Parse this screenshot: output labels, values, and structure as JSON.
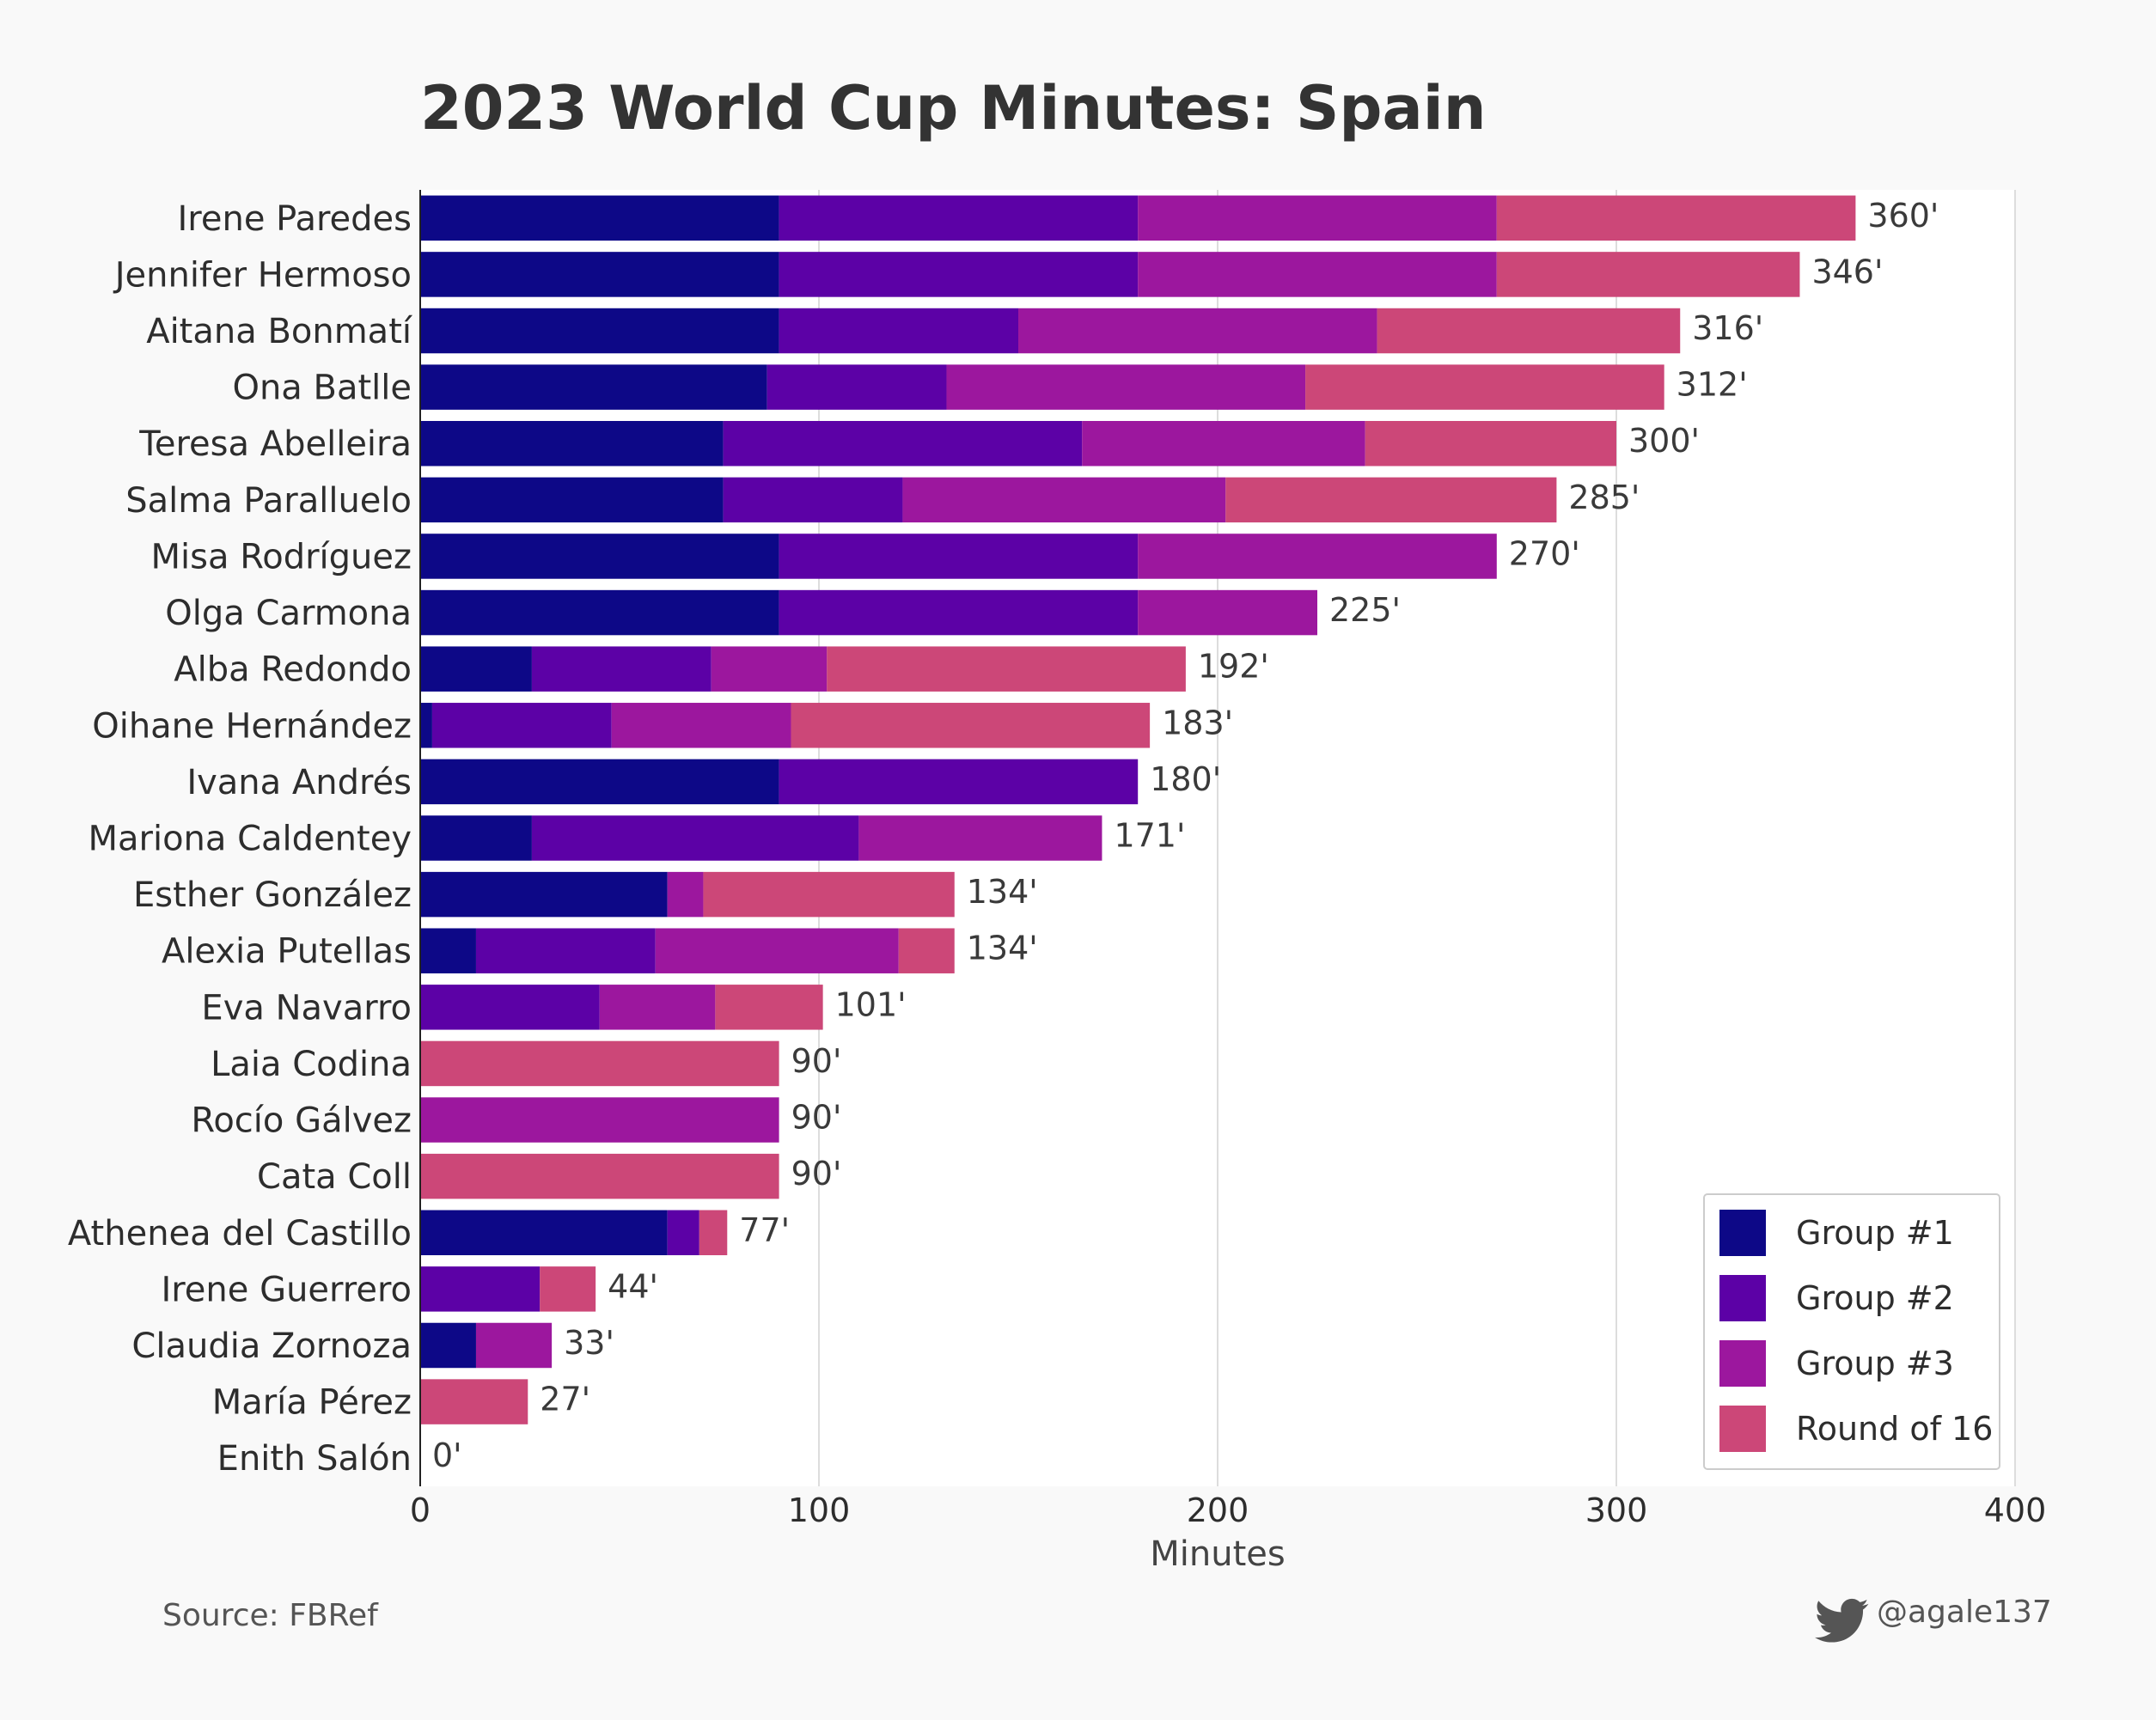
{
  "chart_data": {
    "type": "bar",
    "orientation": "horizontal",
    "stacked": true,
    "title": "2023 World Cup Minutes: Spain",
    "xlabel": "Minutes",
    "xlim": [
      0,
      400
    ],
    "xticks": [
      0,
      100,
      200,
      300,
      400
    ],
    "value_suffix": "'",
    "grid": "vertical",
    "legend_position": "bottom-right",
    "categories": [
      "Irene Paredes",
      "Jennifer Hermoso",
      "Aitana Bonmatí",
      "Ona Batlle",
      "Teresa Abelleira",
      "Salma Paralluelo",
      "Misa Rodríguez",
      "Olga Carmona",
      "Alba Redondo",
      "Oihane Hernández",
      "Ivana Andrés",
      "Mariona Caldentey",
      "Esther González",
      "Alexia Putellas",
      "Eva Navarro",
      "Laia Codina",
      "Rocío Gálvez",
      "Cata Coll",
      "Athenea del Castillo",
      "Irene Guerrero",
      "Claudia Zornoza",
      "María Pérez",
      "Enith Salón"
    ],
    "totals": [
      360,
      346,
      316,
      312,
      300,
      285,
      270,
      225,
      192,
      183,
      180,
      171,
      134,
      134,
      101,
      90,
      90,
      90,
      77,
      44,
      33,
      27,
      0
    ],
    "series": [
      {
        "name": "Group #1",
        "color": "#0d0887",
        "values": [
          90,
          90,
          90,
          87,
          76,
          76,
          90,
          90,
          28,
          3,
          90,
          28,
          62,
          14,
          0,
          0,
          0,
          0,
          62,
          0,
          14,
          0,
          0
        ]
      },
      {
        "name": "Group #2",
        "color": "#5c01a6",
        "values": [
          90,
          90,
          60,
          45,
          90,
          45,
          90,
          90,
          45,
          45,
          90,
          82,
          0,
          45,
          45,
          0,
          0,
          0,
          8,
          30,
          0,
          0,
          0
        ]
      },
      {
        "name": "Group #3",
        "color": "#9c179e",
        "values": [
          90,
          90,
          90,
          90,
          71,
          81,
          90,
          45,
          29,
          45,
          0,
          61,
          9,
          61,
          29,
          0,
          90,
          0,
          0,
          0,
          19,
          0,
          0
        ]
      },
      {
        "name": "Round of 16",
        "color": "#cc4778",
        "values": [
          90,
          76,
          76,
          90,
          63,
          83,
          0,
          0,
          90,
          90,
          0,
          0,
          63,
          14,
          27,
          90,
          0,
          90,
          7,
          14,
          0,
          27,
          0
        ]
      }
    ]
  },
  "footer": {
    "source": "Source: FBRef",
    "handle": "@agale137",
    "handle_icon": "twitter-bird-icon"
  }
}
